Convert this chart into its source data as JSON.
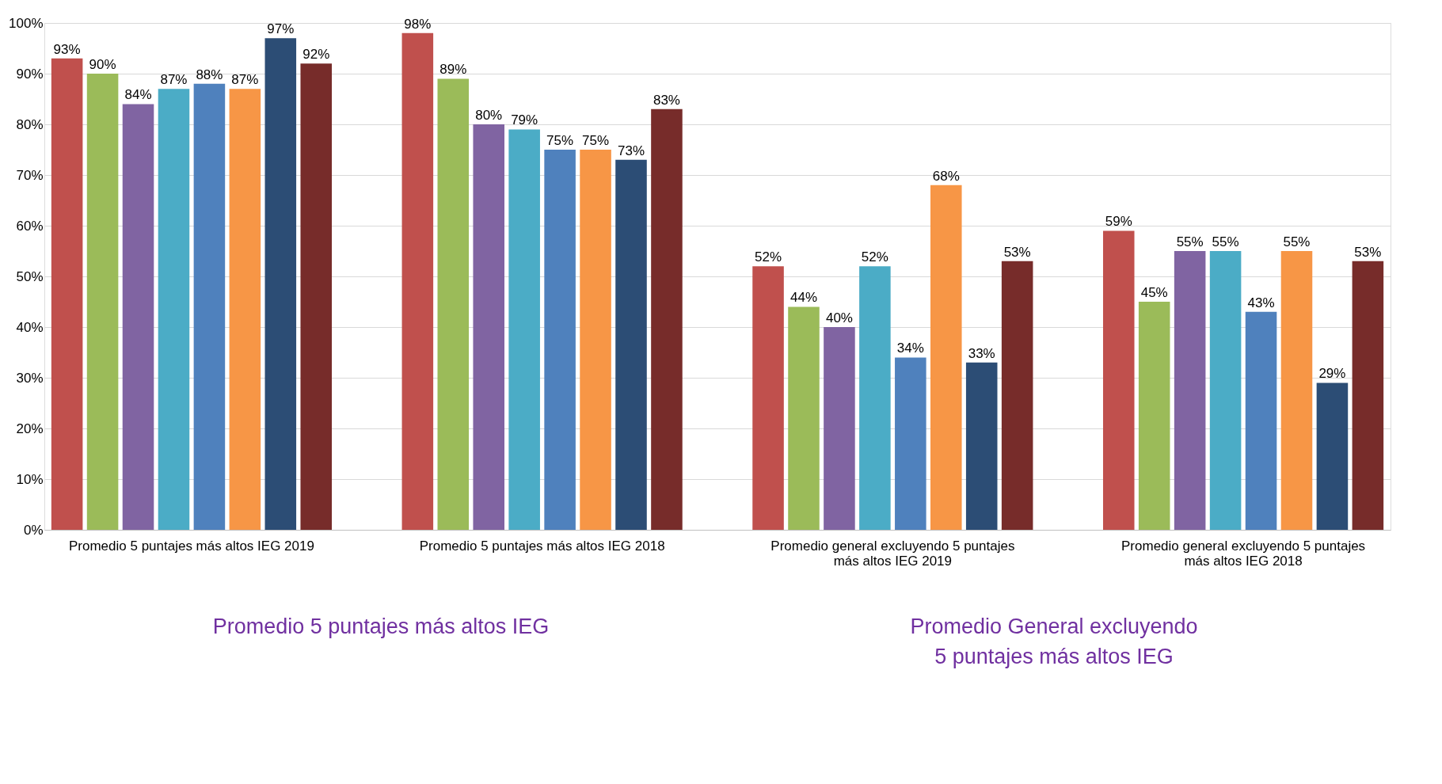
{
  "chart_data": {
    "type": "bar",
    "categories": [
      "Promedio 5 puntajes más altos IEG 2019",
      "Promedio 5 puntajes más altos IEG 2018",
      "Promedio general excluyendo 5 puntajes más altos IEG 2019",
      "Promedio general excluyendo 5 puntajes más altos IEG 2018"
    ],
    "series": [
      {
        "color": "#c0504d",
        "values": [
          93,
          98,
          52,
          59
        ],
        "value_labels": [
          "93%",
          "98%",
          "52%",
          "59%"
        ]
      },
      {
        "color": "#9bbb59",
        "values": [
          90,
          89,
          44,
          45
        ],
        "value_labels": [
          "90%",
          "89%",
          "44%",
          "45%"
        ]
      },
      {
        "color": "#8064a2",
        "values": [
          84,
          80,
          40,
          55
        ],
        "value_labels": [
          "84%",
          "80%",
          "40%",
          "55%"
        ]
      },
      {
        "color": "#4bacc6",
        "values": [
          87,
          79,
          52,
          55
        ],
        "value_labels": [
          "87%",
          "79%",
          "52%",
          "55%"
        ]
      },
      {
        "color": "#4f81bd",
        "values": [
          88,
          75,
          34,
          43
        ],
        "value_labels": [
          "88%",
          "75%",
          "34%",
          "43%"
        ]
      },
      {
        "color": "#f79646",
        "values": [
          87,
          75,
          68,
          55
        ],
        "value_labels": [
          "87%",
          "75%",
          "68%",
          "55%"
        ]
      },
      {
        "color": "#2c4d75",
        "values": [
          97,
          73,
          33,
          29
        ],
        "value_labels": [
          "97%",
          "73%",
          "33%",
          "29%"
        ]
      },
      {
        "color": "#772c2a",
        "values": [
          92,
          83,
          53,
          53
        ],
        "value_labels": [
          "92%",
          "83%",
          "53%",
          "53%"
        ]
      }
    ],
    "ylim": [
      0,
      100
    ],
    "yticks": [
      {
        "value": 0,
        "label": "0%"
      },
      {
        "value": 10,
        "label": "10%"
      },
      {
        "value": 20,
        "label": "20%"
      },
      {
        "value": 30,
        "label": "30%"
      },
      {
        "value": 40,
        "label": "40%"
      },
      {
        "value": 50,
        "label": "50%"
      },
      {
        "value": 60,
        "label": "60%"
      },
      {
        "value": 70,
        "label": "70%"
      },
      {
        "value": 80,
        "label": "80%"
      },
      {
        "value": 90,
        "label": "90%"
      },
      {
        "value": 100,
        "label": "100%"
      }
    ],
    "grid": "y",
    "legend": false,
    "annotations": [
      "Promedio 5 puntajes más altos IEG",
      "Promedio General excluyendo 5 puntajes más altos IEG"
    ]
  }
}
